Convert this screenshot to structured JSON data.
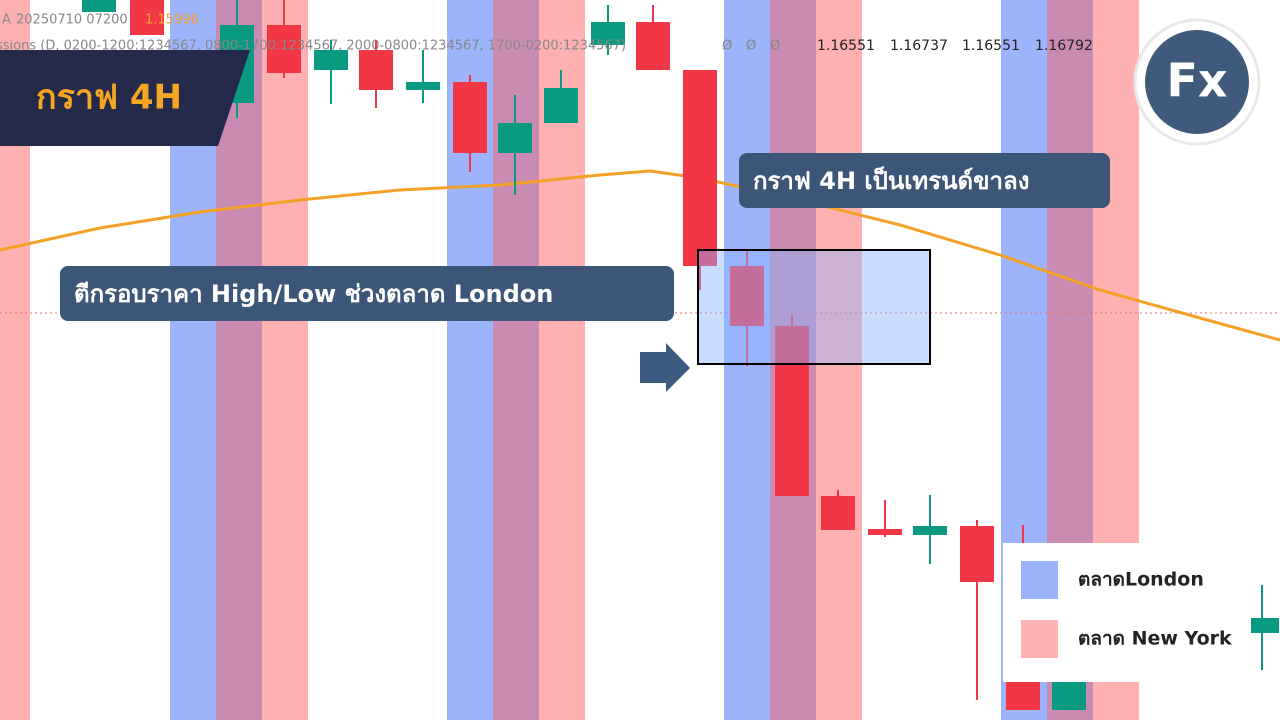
{
  "header": {
    "line1_prefix": "A",
    "line1_code": "20250710 07200",
    "line1_value": "1.15996",
    "line2": "ssions (D, 0200-1200:1234567, 0800-1700:1234567, 2000-0800:1234567, 1700-0200:1234567)",
    "flags": [
      "Ø",
      "Ø",
      "Ø"
    ],
    "ohlc": [
      "1.16551",
      "1.16737",
      "1.16551",
      "1.16792"
    ]
  },
  "badge": {
    "title": "กราฟ 4H"
  },
  "logo": {
    "text": "Fx"
  },
  "annotations": [
    "กราฟ 4H เป็นเทรนด์ขาลง",
    "ตีกรอบราคา High/Low ช่วงตลาด London"
  ],
  "legend": {
    "items": [
      {
        "label": "ตลาดLondon",
        "color": "#9db4fc"
      },
      {
        "label": "ตลาด New York",
        "color": "#ffb0b0"
      }
    ]
  }
}
